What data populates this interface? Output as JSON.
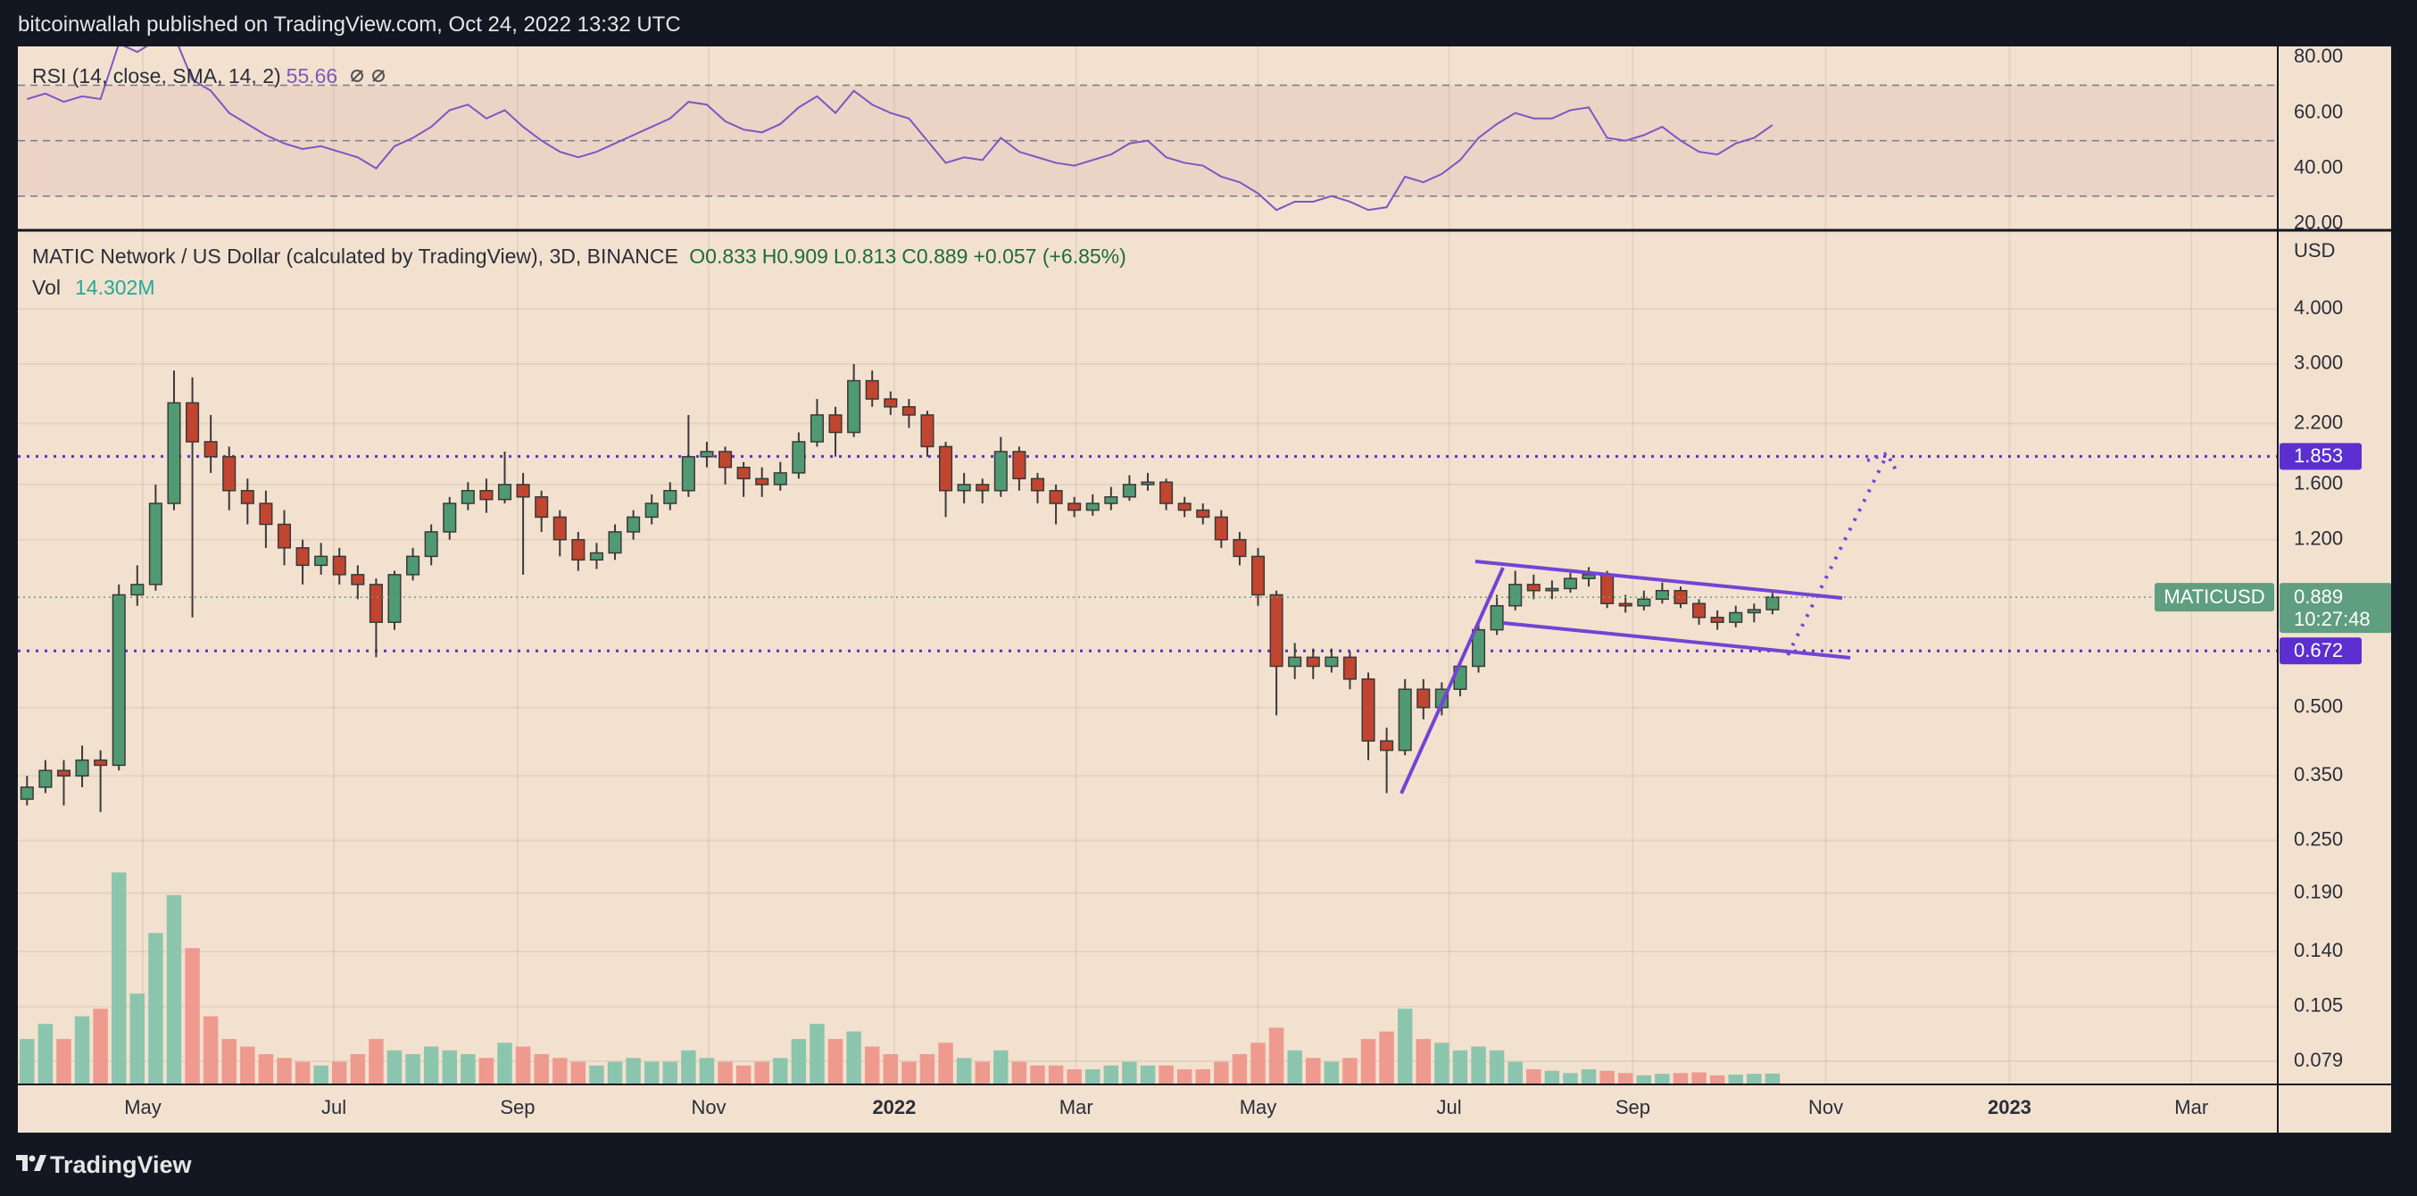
{
  "header": "bitcoinwallah published on TradingView.com, Oct 24, 2022 13:32 UTC",
  "footer": "TradingView",
  "chart_data": [
    {
      "type": "candlestick",
      "title": "MATIC Network / US Dollar (calculated by TradingView), 3D, BINANCE",
      "ohlc_labels": [
        "O",
        "H",
        "L",
        "C"
      ],
      "change": "+0.057 (+6.85%)",
      "up_color": "#4f9a72",
      "down_color": "#c2452f",
      "log_scale": true,
      "grid": true,
      "ylim": [
        0.07,
        6
      ],
      "yticks": [
        {
          "value": 4,
          "label": "4.000"
        },
        {
          "value": 3,
          "label": "3.000"
        },
        {
          "value": 2.2,
          "label": "2.200"
        },
        {
          "value": 1.6,
          "label": "1.600"
        },
        {
          "value": 1.2,
          "label": "1.200"
        },
        {
          "value": 0.5,
          "label": "0.500"
        },
        {
          "value": 0.35,
          "label": "0.350"
        },
        {
          "value": 0.25,
          "label": "0.250"
        },
        {
          "value": 0.19,
          "label": "0.190"
        },
        {
          "value": 0.14,
          "label": "0.140"
        },
        {
          "value": 0.105,
          "label": "0.105"
        },
        {
          "value": 0.079,
          "label": "0.079"
        }
      ],
      "y_label": "USD",
      "xlim": [
        -0.5,
        122.5
      ],
      "xticks": [
        {
          "value": 6.3,
          "label": "May"
        },
        {
          "value": 16.7,
          "label": "Jul"
        },
        {
          "value": 26.7,
          "label": "Sep"
        },
        {
          "value": 37.1,
          "label": "Nov"
        },
        {
          "value": 47.2,
          "label": "2022"
        },
        {
          "value": 57.1,
          "label": "Mar"
        },
        {
          "value": 67,
          "label": "May"
        },
        {
          "value": 77.4,
          "label": "Jul"
        },
        {
          "value": 87.4,
          "label": "Sep"
        },
        {
          "value": 97.9,
          "label": "Nov"
        },
        {
          "value": 107.9,
          "label": "2023"
        },
        {
          "value": 117.8,
          "label": "Mar"
        }
      ],
      "candles": [
        [
          0.31,
          0.35,
          0.3,
          0.33
        ],
        [
          0.33,
          0.38,
          0.32,
          0.36
        ],
        [
          0.36,
          0.38,
          0.3,
          0.35
        ],
        [
          0.35,
          0.41,
          0.33,
          0.38
        ],
        [
          0.38,
          0.4,
          0.29,
          0.37
        ],
        [
          0.37,
          0.95,
          0.36,
          0.9
        ],
        [
          0.9,
          1.05,
          0.85,
          0.95
        ],
        [
          0.95,
          1.6,
          0.92,
          1.45
        ],
        [
          1.45,
          2.9,
          1.4,
          2.45
        ],
        [
          2.45,
          2.8,
          0.8,
          2.0
        ],
        [
          2.0,
          2.3,
          1.7,
          1.85
        ],
        [
          1.85,
          1.95,
          1.4,
          1.55
        ],
        [
          1.55,
          1.65,
          1.3,
          1.45
        ],
        [
          1.45,
          1.55,
          1.15,
          1.3
        ],
        [
          1.3,
          1.4,
          1.05,
          1.15
        ],
        [
          1.15,
          1.2,
          0.95,
          1.05
        ],
        [
          1.05,
          1.18,
          1.0,
          1.1
        ],
        [
          1.1,
          1.15,
          0.95,
          1.0
        ],
        [
          1.0,
          1.05,
          0.88,
          0.95
        ],
        [
          0.95,
          0.98,
          0.65,
          0.78
        ],
        [
          0.78,
          1.02,
          0.75,
          1.0
        ],
        [
          1.0,
          1.15,
          0.97,
          1.1
        ],
        [
          1.1,
          1.3,
          1.05,
          1.25
        ],
        [
          1.25,
          1.5,
          1.2,
          1.45
        ],
        [
          1.45,
          1.62,
          1.4,
          1.55
        ],
        [
          1.55,
          1.65,
          1.38,
          1.48
        ],
        [
          1.48,
          1.9,
          1.45,
          1.6
        ],
        [
          1.6,
          1.7,
          1.0,
          1.5
        ],
        [
          1.5,
          1.55,
          1.25,
          1.35
        ],
        [
          1.35,
          1.4,
          1.1,
          1.2
        ],
        [
          1.2,
          1.25,
          1.02,
          1.08
        ],
        [
          1.08,
          1.18,
          1.03,
          1.12
        ],
        [
          1.12,
          1.3,
          1.08,
          1.25
        ],
        [
          1.25,
          1.4,
          1.2,
          1.35
        ],
        [
          1.35,
          1.52,
          1.3,
          1.45
        ],
        [
          1.45,
          1.62,
          1.4,
          1.55
        ],
        [
          1.55,
          2.3,
          1.5,
          1.85
        ],
        [
          1.85,
          2.0,
          1.75,
          1.9
        ],
        [
          1.9,
          1.95,
          1.6,
          1.75
        ],
        [
          1.75,
          1.8,
          1.5,
          1.65
        ],
        [
          1.65,
          1.75,
          1.5,
          1.6
        ],
        [
          1.6,
          1.8,
          1.55,
          1.7
        ],
        [
          1.7,
          2.1,
          1.65,
          2.0
        ],
        [
          2.0,
          2.5,
          1.95,
          2.3
        ],
        [
          2.3,
          2.4,
          1.85,
          2.1
        ],
        [
          2.1,
          3.0,
          2.05,
          2.75
        ],
        [
          2.75,
          2.9,
          2.4,
          2.5
        ],
        [
          2.5,
          2.6,
          2.3,
          2.4
        ],
        [
          2.4,
          2.5,
          2.15,
          2.3
        ],
        [
          2.3,
          2.35,
          1.85,
          1.95
        ],
        [
          1.95,
          2.0,
          1.35,
          1.55
        ],
        [
          1.55,
          1.7,
          1.45,
          1.6
        ],
        [
          1.6,
          1.65,
          1.45,
          1.55
        ],
        [
          1.55,
          2.05,
          1.5,
          1.9
        ],
        [
          1.9,
          1.95,
          1.55,
          1.65
        ],
        [
          1.65,
          1.7,
          1.45,
          1.55
        ],
        [
          1.55,
          1.6,
          1.3,
          1.45
        ],
        [
          1.45,
          1.5,
          1.35,
          1.4
        ],
        [
          1.4,
          1.52,
          1.36,
          1.45
        ],
        [
          1.45,
          1.58,
          1.4,
          1.5
        ],
        [
          1.5,
          1.68,
          1.47,
          1.6
        ],
        [
          1.6,
          1.7,
          1.55,
          1.62
        ],
        [
          1.62,
          1.65,
          1.4,
          1.45
        ],
        [
          1.45,
          1.5,
          1.35,
          1.4
        ],
        [
          1.4,
          1.45,
          1.3,
          1.35
        ],
        [
          1.35,
          1.4,
          1.15,
          1.2
        ],
        [
          1.2,
          1.25,
          1.05,
          1.1
        ],
        [
          1.1,
          1.15,
          0.85,
          0.9
        ],
        [
          0.9,
          0.92,
          0.48,
          0.62
        ],
        [
          0.62,
          0.7,
          0.58,
          0.65
        ],
        [
          0.65,
          0.68,
          0.58,
          0.62
        ],
        [
          0.62,
          0.68,
          0.6,
          0.65
        ],
        [
          0.65,
          0.67,
          0.55,
          0.58
        ],
        [
          0.58,
          0.6,
          0.38,
          0.42
        ],
        [
          0.42,
          0.45,
          0.32,
          0.4
        ],
        [
          0.4,
          0.58,
          0.39,
          0.55
        ],
        [
          0.55,
          0.58,
          0.47,
          0.5
        ],
        [
          0.5,
          0.57,
          0.48,
          0.55
        ],
        [
          0.55,
          0.64,
          0.53,
          0.62
        ],
        [
          0.62,
          0.78,
          0.6,
          0.75
        ],
        [
          0.75,
          0.9,
          0.73,
          0.85
        ],
        [
          0.85,
          1.02,
          0.83,
          0.95
        ],
        [
          0.95,
          1.0,
          0.88,
          0.92
        ],
        [
          0.92,
          0.97,
          0.88,
          0.93
        ],
        [
          0.93,
          1.01,
          0.91,
          0.98
        ],
        [
          0.98,
          1.04,
          0.94,
          1.0
        ],
        [
          1.0,
          1.02,
          0.84,
          0.86
        ],
        [
          0.86,
          0.9,
          0.82,
          0.85
        ],
        [
          0.85,
          0.92,
          0.83,
          0.88
        ],
        [
          0.88,
          0.96,
          0.86,
          0.92
        ],
        [
          0.92,
          0.94,
          0.84,
          0.86
        ],
        [
          0.86,
          0.88,
          0.77,
          0.8
        ],
        [
          0.8,
          0.83,
          0.75,
          0.78
        ],
        [
          0.78,
          0.85,
          0.76,
          0.82
        ],
        [
          0.82,
          0.86,
          0.78,
          0.833
        ],
        [
          0.833,
          0.909,
          0.813,
          0.889
        ]
      ],
      "volume": {
        "name": "Vol",
        "value_label": "14.302M",
        "up_color": "#8cc5ad",
        "down_color": "#ee9a8e",
        "ylim": [
          0,
          290
        ],
        "values": [
          60,
          80,
          60,
          90,
          100,
          280,
          120,
          200,
          250,
          180,
          90,
          60,
          50,
          40,
          35,
          30,
          25,
          30,
          40,
          60,
          45,
          40,
          50,
          45,
          40,
          35,
          55,
          50,
          40,
          35,
          30,
          25,
          30,
          35,
          30,
          30,
          45,
          35,
          30,
          25,
          30,
          35,
          60,
          80,
          60,
          70,
          50,
          40,
          30,
          40,
          55,
          35,
          30,
          45,
          30,
          25,
          25,
          20,
          20,
          25,
          30,
          25,
          25,
          20,
          20,
          30,
          40,
          55,
          75,
          45,
          35,
          30,
          35,
          60,
          70,
          100,
          60,
          55,
          45,
          50,
          45,
          30,
          20,
          18,
          15,
          20,
          18,
          15,
          12,
          14,
          15,
          16,
          12,
          13,
          14,
          14.302
        ]
      },
      "levels": [
        1.853,
        0.672
      ],
      "level_color": "#5b2fd0",
      "symbol": "MATICUSD",
      "countdown": "10:27:48",
      "last_color": "#5f9e7e"
    },
    {
      "type": "line",
      "name": "RSI (14, close, SMA, 14, 2)",
      "color": "#7e57c2",
      "ylim": [
        18,
        84
      ],
      "yticks": [
        {
          "value": 80,
          "label": "80.00"
        },
        {
          "value": 60,
          "label": "60.00"
        },
        {
          "value": 40,
          "label": "40.00"
        },
        {
          "value": 20,
          "label": "20.00"
        }
      ],
      "band": [
        30,
        70
      ],
      "midline": 50,
      "values": [
        65,
        67,
        64,
        66,
        65,
        85,
        82,
        86,
        88,
        72,
        68,
        60,
        56,
        52,
        49,
        47,
        48,
        46,
        44,
        40,
        48,
        51,
        55,
        61,
        63,
        58,
        61,
        55,
        50,
        46,
        44,
        46,
        49,
        52,
        55,
        58,
        64,
        63,
        57,
        54,
        53,
        56,
        62,
        66,
        60,
        68,
        63,
        60,
        58,
        50,
        42,
        44,
        43,
        51,
        46,
        44,
        42,
        41,
        43,
        45,
        49,
        50,
        44,
        42,
        41,
        37,
        35,
        31,
        25,
        28,
        28,
        30,
        28,
        25,
        26,
        37,
        35,
        38,
        43,
        51,
        56,
        60,
        58,
        58,
        61,
        62,
        51,
        50,
        52,
        55,
        50,
        46,
        45,
        49,
        51,
        55.66
      ]
    }
  ]
}
